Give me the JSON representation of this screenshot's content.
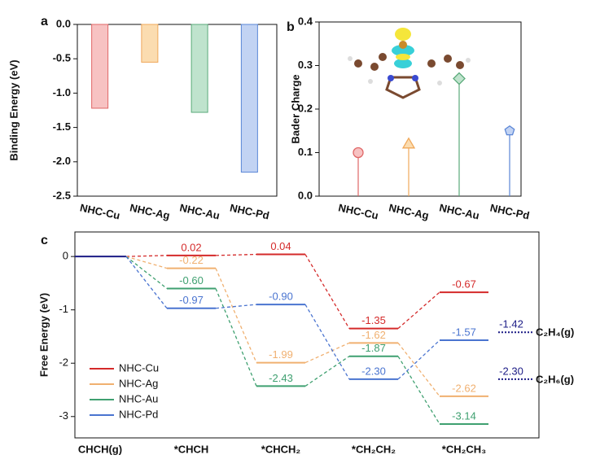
{
  "chart_data": [
    {
      "type": "bar",
      "panel": "a",
      "ylabel": "Binding Energy (eV)",
      "categories": [
        "NHC-Cu",
        "NHC-Ag",
        "NHC-Au",
        "NHC-Pd"
      ],
      "values": [
        -1.22,
        -0.55,
        -1.28,
        -2.15
      ],
      "colors": [
        "#f7c2c2",
        "#fbdcb0",
        "#bfe3cd",
        "#c2d3f3"
      ],
      "edge_colors": [
        "#e06666",
        "#f0a85a",
        "#5aaa7a",
        "#5a86d6"
      ],
      "ylim": [
        -2.5,
        0
      ],
      "yticks": [
        {
          "value": 0,
          "label": "0.0"
        },
        -0.5,
        {
          "value": -1,
          "label": "-1.0"
        },
        -1.5,
        {
          "value": -2,
          "label": "-2.0"
        },
        -2.5
      ]
    },
    {
      "type": "stem",
      "panel": "b",
      "ylabel": "Bader Charge",
      "categories": [
        "NHC-Cu",
        "NHC-Ag",
        "NHC-Au",
        "NHC-Pd"
      ],
      "values": [
        0.1,
        0.12,
        0.27,
        0.15
      ],
      "markers": [
        "circle",
        "triangle",
        "diamond",
        "pentagon"
      ],
      "colors": [
        "#f7c2c2",
        "#fbdcb0",
        "#bfe3cd",
        "#c2d3f3"
      ],
      "edge_colors": [
        "#e06666",
        "#f0a85a",
        "#5aaa7a",
        "#5a86d6"
      ],
      "ylim": [
        0,
        0.4
      ],
      "yticks": [
        {
          "value": 0,
          "label": "0.0"
        },
        0.1,
        0.2,
        0.3,
        0.4
      ]
    },
    {
      "type": "energy",
      "panel": "c",
      "ylabel": "Free Energy (eV)",
      "categories": [
        "CHCH(g)",
        "*CHCH",
        "*CHCH₂",
        "*CH₂CH₂",
        "*CH₂CH₃"
      ],
      "start_color": "#1c1c86",
      "series": [
        {
          "name": "NHC-Cu",
          "color": "#d42a2a",
          "values": [
            0,
            0.02,
            0.04,
            -1.35,
            -0.67
          ],
          "value_labels": [
            null,
            "0.02",
            "0.04",
            "-1.35",
            "-0.67"
          ]
        },
        {
          "name": "NHC-Ag",
          "color": "#f0b070",
          "values": [
            0,
            -0.22,
            -1.99,
            -1.62,
            -2.62
          ],
          "value_labels": [
            null,
            "-0.22",
            "-1.99",
            "-1.62",
            "-2.62"
          ]
        },
        {
          "name": "NHC-Au",
          "color": "#3fa070",
          "values": [
            0,
            -0.6,
            -2.43,
            -1.87,
            -3.14
          ],
          "value_labels": [
            null,
            "-0.60",
            "-2.43",
            "-1.87",
            "-3.14"
          ]
        },
        {
          "name": "NHC-Pd",
          "color": "#4a74d0",
          "values": [
            0,
            -0.97,
            -0.9,
            -2.3,
            -1.57
          ],
          "value_labels": [
            null,
            "-0.97",
            "-0.90",
            "-2.30",
            "-1.57"
          ]
        }
      ],
      "references": [
        {
          "text": "C₂H₄(g)",
          "value": -1.42,
          "value_label": "-1.42"
        },
        {
          "text": "C₂H₆(g)",
          "value": -2.3,
          "value_label": "-2.30"
        }
      ],
      "reference_color": "#1c1c86",
      "ylim": [
        -3.4,
        0.46
      ],
      "yticks": [
        0,
        -1,
        -2,
        -3
      ]
    }
  ]
}
